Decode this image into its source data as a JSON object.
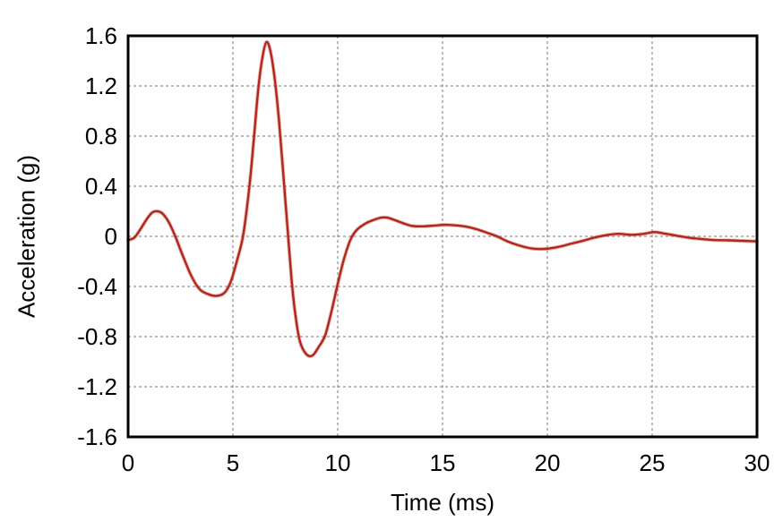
{
  "chart_data": {
    "type": "line",
    "title": "",
    "xlabel": "Time (ms)",
    "ylabel": "Acceleration (g)",
    "xlim": [
      0,
      30
    ],
    "ylim": [
      -1.6,
      1.6
    ],
    "xticks": {
      "values": [
        0,
        5,
        10,
        15,
        20,
        25,
        30
      ],
      "labels": [
        "0",
        "5",
        "10",
        "15",
        "20",
        "25",
        "30"
      ]
    },
    "yticks": {
      "values": [
        1.6,
        1.2,
        0.8,
        0.4,
        0,
        -0.4,
        -0.8,
        -1.2,
        -1.6
      ],
      "labels": [
        "1.6",
        "1.2",
        "0.8",
        "0.4",
        "0",
        "-0.4",
        "-0.8",
        "-1.2",
        "-1.6"
      ]
    },
    "grid": true,
    "legend_position": "none",
    "colors": {
      "line": "#b2281e",
      "line_halo": "#cc6a5c",
      "grid": "#909090",
      "frame": "#000000",
      "text": "#000000",
      "background": "#ffffff"
    },
    "series": [
      {
        "name": "acceleration",
        "x": [
          0,
          0.3,
          0.6,
          0.9,
          1.15,
          1.4,
          1.65,
          1.95,
          2.25,
          2.6,
          3.0,
          3.4,
          3.8,
          4.2,
          4.6,
          4.9,
          5.2,
          5.5,
          5.8,
          6.0,
          6.2,
          6.4,
          6.6,
          6.8,
          7.0,
          7.2,
          7.4,
          7.6,
          7.8,
          8.0,
          8.2,
          8.5,
          8.8,
          9.1,
          9.4,
          9.7,
          10.0,
          10.3,
          10.6,
          10.9,
          11.3,
          11.7,
          12.1,
          12.4,
          12.8,
          13.2,
          13.6,
          14.1,
          14.6,
          15.1,
          15.6,
          16.1,
          16.6,
          17.1,
          17.6,
          18.1,
          18.7,
          19.3,
          19.9,
          20.5,
          21.1,
          21.7,
          22.3,
          22.9,
          23.4,
          24.0,
          24.6,
          25.1,
          25.6,
          26.2,
          26.8,
          27.4,
          28.0,
          28.7,
          29.3,
          30.0
        ],
        "y": [
          -0.03,
          -0.01,
          0.06,
          0.14,
          0.19,
          0.2,
          0.18,
          0.11,
          0.0,
          -0.15,
          -0.31,
          -0.42,
          -0.46,
          -0.475,
          -0.45,
          -0.36,
          -0.19,
          0.02,
          0.42,
          0.78,
          1.16,
          1.42,
          1.55,
          1.47,
          1.25,
          0.92,
          0.5,
          0.08,
          -0.35,
          -0.65,
          -0.84,
          -0.94,
          -0.95,
          -0.88,
          -0.79,
          -0.6,
          -0.38,
          -0.18,
          -0.03,
          0.05,
          0.1,
          0.13,
          0.15,
          0.148,
          0.125,
          0.1,
          0.082,
          0.08,
          0.086,
          0.092,
          0.088,
          0.078,
          0.058,
          0.03,
          0.0,
          -0.04,
          -0.075,
          -0.098,
          -0.1,
          -0.085,
          -0.06,
          -0.035,
          -0.008,
          0.012,
          0.02,
          0.012,
          0.02,
          0.034,
          0.022,
          0.004,
          -0.012,
          -0.022,
          -0.03,
          -0.032,
          -0.036,
          -0.04
        ]
      }
    ]
  }
}
